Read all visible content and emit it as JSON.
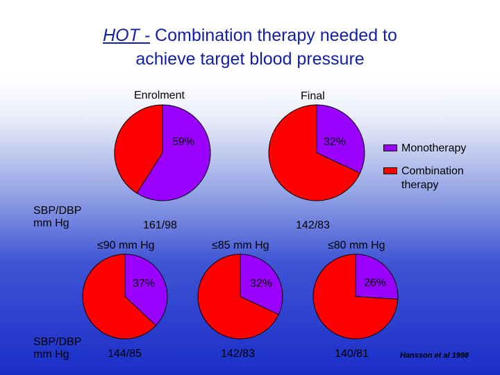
{
  "title": {
    "emphasis": "HOT -",
    "line1_rest": " Combination therapy needed to",
    "line2": "achieve target blood pressure"
  },
  "colors": {
    "monotherapy": "#9900ff",
    "combination": "#ff0000",
    "title": "#111fa6"
  },
  "legend": {
    "monotherapy": "Monotherapy",
    "combination_line1": "Combination",
    "combination_line2": "therapy"
  },
  "row_label": {
    "line1": "SBP/DBP",
    "line2": "mm Hg"
  },
  "citation": "Hansson et al 1998",
  "chart_data": [
    {
      "type": "pie",
      "title": "Enrolment",
      "series": [
        {
          "name": "Monotherapy",
          "value": 59
        },
        {
          "name": "Combination therapy",
          "value": 41
        }
      ],
      "label": "59%",
      "bp": "161/98"
    },
    {
      "type": "pie",
      "title": "Final",
      "series": [
        {
          "name": "Monotherapy",
          "value": 32
        },
        {
          "name": "Combination therapy",
          "value": 68
        }
      ],
      "label": "32%",
      "bp": "142/83"
    },
    {
      "type": "pie",
      "title": "≤90 mm Hg",
      "series": [
        {
          "name": "Monotherapy",
          "value": 37
        },
        {
          "name": "Combination therapy",
          "value": 63
        }
      ],
      "label": "37%",
      "bp": "144/85"
    },
    {
      "type": "pie",
      "title": "≤85 mm Hg",
      "series": [
        {
          "name": "Monotherapy",
          "value": 32
        },
        {
          "name": "Combination therapy",
          "value": 68
        }
      ],
      "label": "32%",
      "bp": "142/83"
    },
    {
      "type": "pie",
      "title": "≤80 mm Hg",
      "series": [
        {
          "name": "Monotherapy",
          "value": 26
        },
        {
          "name": "Combination therapy",
          "value": 74
        }
      ],
      "label": "26%",
      "bp": "140/81"
    }
  ]
}
